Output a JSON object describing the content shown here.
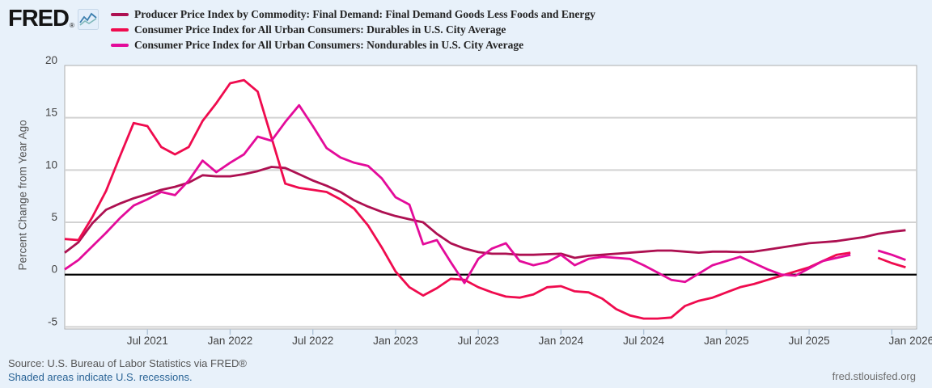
{
  "header": {
    "logo_text": "FRED",
    "logo_reg": "®"
  },
  "chart_data": {
    "type": "line",
    "title": "",
    "ylabel": "Percent Change from Year Ago",
    "ylim": [
      -5.2,
      20
    ],
    "yticks": [
      -5,
      0,
      5,
      10,
      15,
      20
    ],
    "zero_line": 0,
    "grid": "horizontal",
    "legend_position": "top-left",
    "x_start": "Jan 2021",
    "xlim_months": [
      0,
      61.8
    ],
    "x_tick_months": [
      6,
      12,
      18,
      24,
      30,
      36,
      42,
      48,
      54,
      60
    ],
    "x_tick_labels": [
      "Jul 2021",
      "Jan 2022",
      "Jul 2022",
      "Jan 2023",
      "Jul 2023",
      "Jan 2024",
      "Jul 2024",
      "Jan 2025",
      "Jul 2025",
      "Jan 2026"
    ],
    "series": [
      {
        "name": "Producer Price Index by Commodity: Final Demand: Final Demand Goods Less Foods and Energy",
        "color": "#ad1051",
        "values": [
          2.1,
          3.1,
          4.9,
          6.2,
          6.8,
          7.3,
          7.7,
          8.1,
          8.4,
          8.8,
          9.5,
          9.4,
          9.4,
          9.6,
          9.9,
          10.3,
          10.2,
          9.6,
          9.0,
          8.5,
          7.9,
          7.1,
          6.5,
          6.0,
          5.6,
          5.3,
          5.0,
          3.9,
          3.0,
          2.5,
          2.15,
          2.0,
          2.0,
          1.9,
          1.9,
          1.95,
          2.0,
          1.6,
          1.8,
          1.9,
          2.0,
          2.1,
          2.2,
          2.3,
          2.3,
          2.2,
          2.1,
          2.2,
          2.2,
          2.15,
          2.2,
          2.4,
          2.6,
          2.8,
          3.0,
          3.1,
          3.2,
          3.4,
          3.6,
          3.9,
          4.1,
          4.25
        ]
      },
      {
        "name": "Consumer Price Index for All Urban Consumers: Durables in U.S. City Average",
        "color": "#ef0b4e",
        "values": [
          3.4,
          3.3,
          5.5,
          8.0,
          11.3,
          14.5,
          14.2,
          12.2,
          11.5,
          12.2,
          14.7,
          16.4,
          18.3,
          18.6,
          17.5,
          13.1,
          8.7,
          8.3,
          8.1,
          7.9,
          7.2,
          6.3,
          4.7,
          2.6,
          0.3,
          -1.2,
          -2.0,
          -1.3,
          -0.4,
          -0.5,
          -1.2,
          -1.7,
          -2.1,
          -2.2,
          -1.9,
          -1.2,
          -1.1,
          -1.6,
          -1.7,
          -2.3,
          -3.3,
          -3.9,
          -4.2,
          -4.2,
          -4.1,
          -3.0,
          -2.5,
          -2.2,
          -1.7,
          -1.2,
          -0.9,
          -0.5,
          -0.1,
          0.3,
          0.7,
          1.3,
          1.9,
          2.1,
          null,
          1.6,
          1.1,
          0.7
        ]
      },
      {
        "name": "Consumer Price Index for All Urban Consumers: Nondurables in U.S. City Average",
        "color": "#e30b9a",
        "values": [
          0.5,
          1.4,
          2.7,
          4.0,
          5.4,
          6.6,
          7.2,
          7.9,
          7.6,
          9.0,
          10.9,
          9.8,
          10.7,
          11.5,
          13.2,
          12.8,
          14.6,
          16.2,
          14.2,
          12.1,
          11.2,
          10.7,
          10.4,
          9.2,
          7.4,
          6.7,
          2.9,
          3.3,
          1.2,
          -0.8,
          1.5,
          2.5,
          3.0,
          1.3,
          0.9,
          1.2,
          1.9,
          0.9,
          1.5,
          1.7,
          1.6,
          1.5,
          0.9,
          0.2,
          -0.5,
          -0.7,
          0.1,
          0.9,
          1.3,
          1.7,
          1.1,
          0.5,
          0.0,
          -0.1,
          0.6,
          1.3,
          1.6,
          1.9,
          null,
          2.3,
          1.9,
          1.4
        ]
      }
    ]
  },
  "footer": {
    "source": "Source: U.S. Bureau of Labor Statistics via FRED®",
    "recession_note": "Shaded areas indicate U.S. recessions.",
    "site": "fred.stlouisfed.org"
  }
}
